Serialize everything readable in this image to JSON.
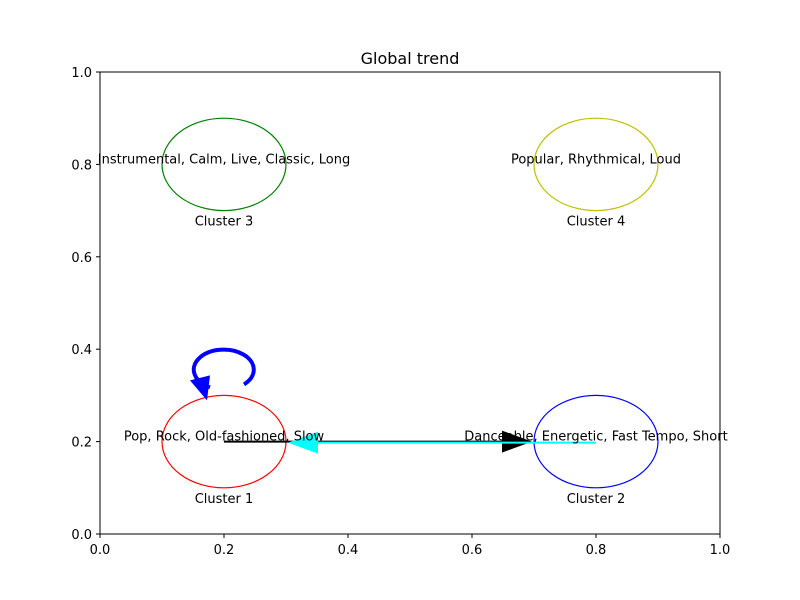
{
  "chart_data": {
    "type": "scatter",
    "title": "Global trend",
    "xlabel": "",
    "ylabel": "",
    "xlim": [
      0,
      1
    ],
    "ylim": [
      0,
      1
    ],
    "grid": false,
    "x_ticks": [
      "0.0",
      "0.2",
      "0.4",
      "0.6",
      "0.8",
      "1.0"
    ],
    "y_ticks": [
      "0.0",
      "0.2",
      "0.4",
      "0.6",
      "0.8",
      "1.0"
    ],
    "clusters": [
      {
        "name": "Cluster 1",
        "x": 0.2,
        "y": 0.2,
        "radius": 0.1,
        "color": "#ff0000",
        "description": "Pop, Rock, Old-fashioned, Slow"
      },
      {
        "name": "Cluster 2",
        "x": 0.8,
        "y": 0.2,
        "radius": 0.1,
        "color": "#0000ff",
        "description": "Danceable, Energetic, Fast Tempo, Short"
      },
      {
        "name": "Cluster 3",
        "x": 0.2,
        "y": 0.8,
        "radius": 0.1,
        "color": "#008000",
        "description": "Instrumental, Calm, Live, Classic, Long"
      },
      {
        "name": "Cluster 4",
        "x": 0.8,
        "y": 0.8,
        "radius": 0.1,
        "color": "#bfbf00",
        "description": "Popular, Rhythmical, Loud"
      }
    ],
    "transitions": [
      {
        "from": "Cluster 1",
        "to": "Cluster 2",
        "color": "#000000"
      },
      {
        "from": "Cluster 2",
        "to": "Cluster 1",
        "color": "#00ffff"
      },
      {
        "from": "Cluster 1",
        "to": "Cluster 1",
        "color": "#0000ff"
      }
    ]
  }
}
